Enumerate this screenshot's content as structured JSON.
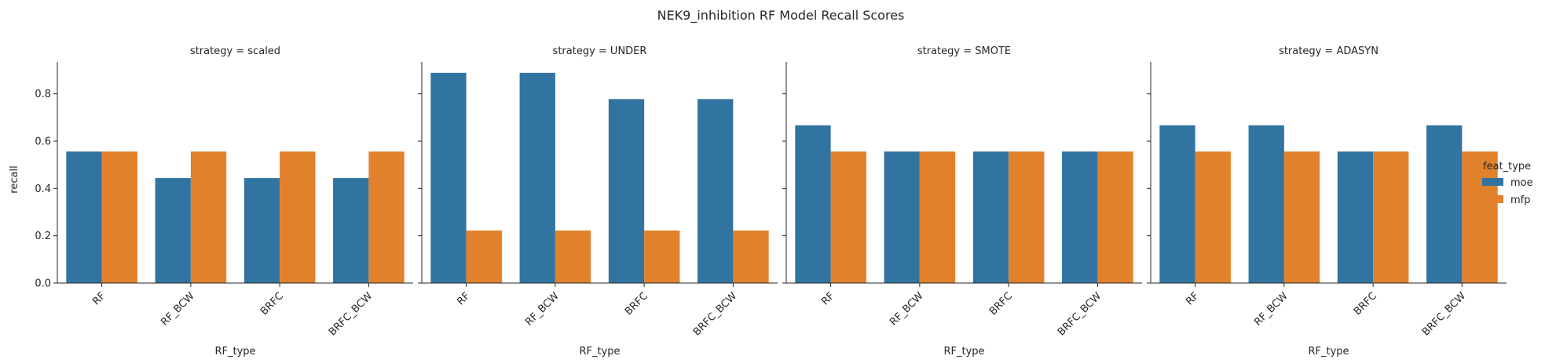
{
  "chart_data": {
    "type": "bar",
    "title": "NEK9_inhibition RF Model Recall Scores",
    "xlabel": "RF_type",
    "ylabel": "recall",
    "ylim": [
      0,
      0.935
    ],
    "yticks": [
      "0.0",
      "0.2",
      "0.4",
      "0.6",
      "0.8"
    ],
    "categories": [
      "RF",
      "RF_BCW",
      "BRFC",
      "BRFC_BCW"
    ],
    "legend": {
      "title": "feat_type",
      "position": "right",
      "entries": [
        {
          "name": "moe",
          "color": "#3274a1"
        },
        {
          "name": "mfp",
          "color": "#e1812c"
        }
      ]
    },
    "panels": [
      {
        "title": "strategy = scaled",
        "series": [
          {
            "name": "moe",
            "values": [
              0.556,
              0.444,
              0.444,
              0.444
            ]
          },
          {
            "name": "mfp",
            "values": [
              0.556,
              0.556,
              0.556,
              0.556
            ]
          }
        ]
      },
      {
        "title": "strategy = UNDER",
        "series": [
          {
            "name": "moe",
            "values": [
              0.889,
              0.889,
              0.778,
              0.778
            ]
          },
          {
            "name": "mfp",
            "values": [
              0.222,
              0.222,
              0.222,
              0.222
            ]
          }
        ]
      },
      {
        "title": "strategy = SMOTE",
        "series": [
          {
            "name": "moe",
            "values": [
              0.667,
              0.556,
              0.556,
              0.556
            ]
          },
          {
            "name": "mfp",
            "values": [
              0.556,
              0.556,
              0.556,
              0.556
            ]
          }
        ]
      },
      {
        "title": "strategy = ADASYN",
        "series": [
          {
            "name": "moe",
            "values": [
              0.667,
              0.667,
              0.556,
              0.667
            ]
          },
          {
            "name": "mfp",
            "values": [
              0.556,
              0.556,
              0.556,
              0.556
            ]
          }
        ]
      }
    ]
  }
}
